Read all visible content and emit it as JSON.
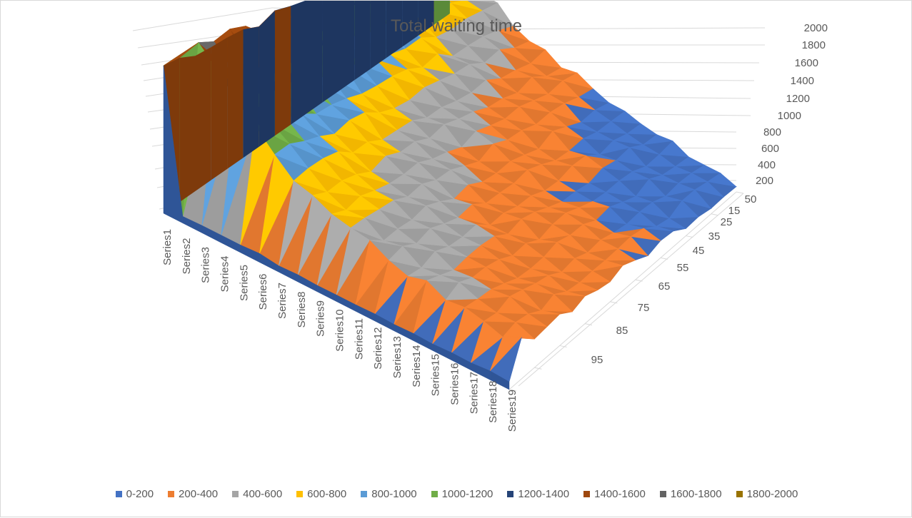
{
  "chart_data": {
    "type": "surface",
    "title": "Total waiting time",
    "z_ticks": [
      "2000",
      "1800",
      "1600",
      "1400",
      "1200",
      "1000",
      "800",
      "600",
      "400",
      "200"
    ],
    "x_ticks": [
      "50",
      "15",
      "25",
      "35",
      "45",
      "55",
      "65",
      "75",
      "85",
      "95"
    ],
    "series_labels": [
      "Series1",
      "Series2",
      "Series3",
      "Series4",
      "Series5",
      "Series6",
      "Series7",
      "Series8",
      "Series9",
      "Series10",
      "Series11",
      "Series12",
      "Series13",
      "Series14",
      "Series15",
      "Series16",
      "Series17",
      "Series18",
      "Series19"
    ],
    "zlim": [
      0,
      2000
    ],
    "legend_position": "bottom",
    "bands": [
      {
        "label": "0-200",
        "color": "#4472c4"
      },
      {
        "label": "200-400",
        "color": "#ed7d31"
      },
      {
        "label": "400-600",
        "color": "#a5a5a5"
      },
      {
        "label": "600-800",
        "color": "#ffc000"
      },
      {
        "label": "800-1000",
        "color": "#5b9bd5"
      },
      {
        "label": "1000-1200",
        "color": "#70ad47"
      },
      {
        "label": "1200-1400",
        "color": "#264478"
      },
      {
        "label": "1400-1600",
        "color": "#9e480e"
      },
      {
        "label": "1600-1800",
        "color": "#636363"
      },
      {
        "label": "1800-2000",
        "color": "#997300"
      }
    ]
  }
}
